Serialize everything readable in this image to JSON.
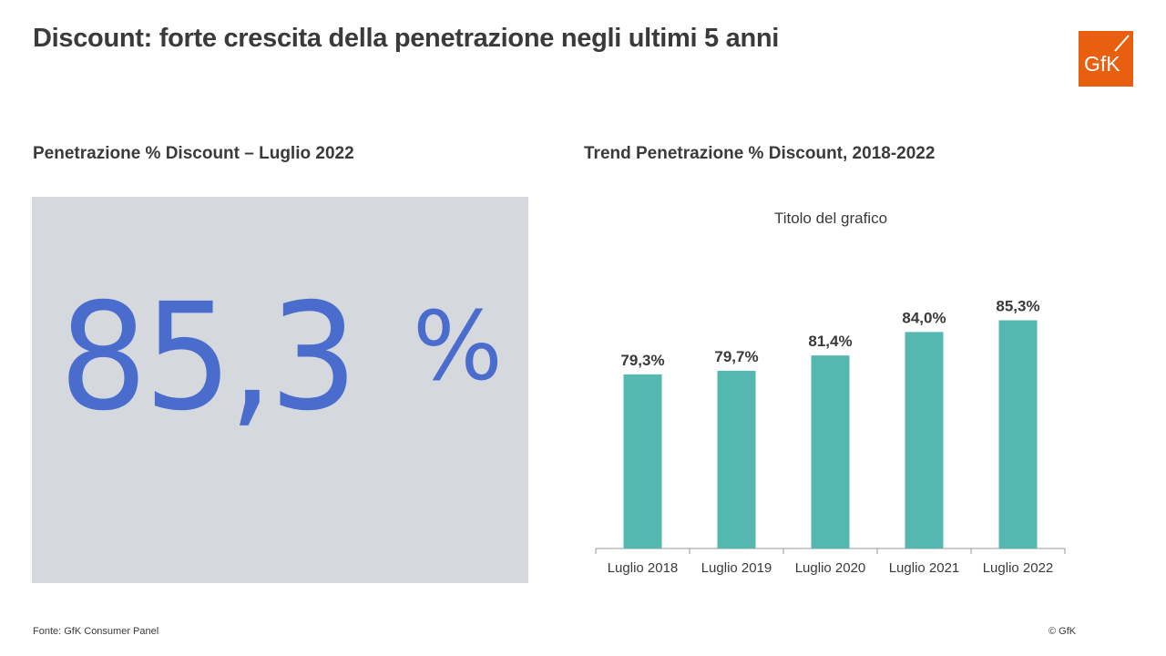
{
  "header": {
    "title": "Discount: forte crescita della penetrazione negli ultimi 5 anni",
    "logo_text": "GfK",
    "logo_color": "#e8600f"
  },
  "left_panel": {
    "subtitle": "Penetrazione % Discount  – Luglio 2022",
    "kpi_value": "85,3",
    "kpi_unit": "%",
    "kpi_color": "#4a6ccc",
    "box_color": "#d5d9de"
  },
  "right_panel": {
    "subtitle": "Trend Penetrazione % Discount, 2018-2022"
  },
  "chart_data": {
    "type": "bar",
    "title": "Titolo del grafico",
    "categories": [
      "Luglio 2018",
      "Luglio 2019",
      "Luglio 2020",
      "Luglio 2021",
      "Luglio 2022"
    ],
    "values": [
      79.3,
      79.7,
      81.4,
      84.0,
      85.3
    ],
    "data_labels": [
      "79,3%",
      "79,7%",
      "81,4%",
      "84,0%",
      "85,3%"
    ],
    "bar_color": "#55b8b0",
    "ylim": [
      60,
      90
    ],
    "grid": false,
    "y_axis_visible": false,
    "xlabel": "",
    "ylabel": ""
  },
  "footer": {
    "source": "Fonte: GfK Consumer Panel",
    "copyright": "© GfK"
  }
}
